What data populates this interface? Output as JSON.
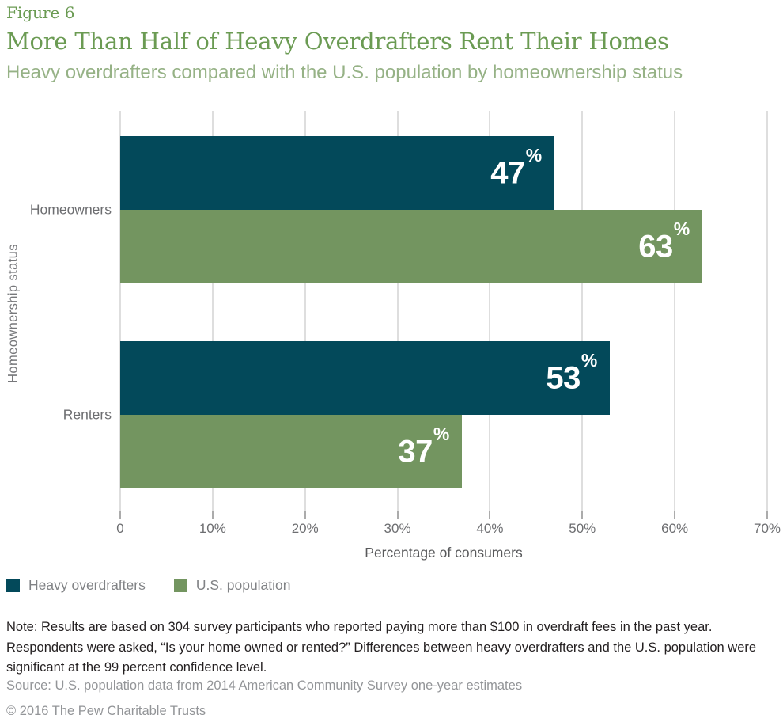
{
  "header": {
    "figure_label": "Figure 6",
    "title": "More Than Half of Heavy Overdrafters Rent Their Homes",
    "subtitle": "Heavy overdrafters compared with the U.S. population by homeownership status"
  },
  "chart_data": {
    "type": "bar",
    "orientation": "horizontal",
    "categories": [
      "Homeowners",
      "Renters"
    ],
    "series": [
      {
        "name": "Heavy overdrafters",
        "color": "#03495a",
        "values": [
          47,
          53
        ]
      },
      {
        "name": "U.S. population",
        "color": "#739560",
        "values": [
          63,
          37
        ]
      }
    ],
    "value_suffix": "%",
    "xlabel": "Percentage of consumers",
    "ylabel": "Homeownership status",
    "xlim": [
      0,
      70
    ],
    "x_ticks": [
      {
        "value": 0,
        "label": "0"
      },
      {
        "value": 10,
        "label": "10%"
      },
      {
        "value": 20,
        "label": "20%"
      },
      {
        "value": 30,
        "label": "30%"
      },
      {
        "value": 40,
        "label": "40%"
      },
      {
        "value": 50,
        "label": "50%"
      },
      {
        "value": 60,
        "label": "60%"
      },
      {
        "value": 70,
        "label": "70%"
      }
    ],
    "grid": "vertical",
    "legend_position": "bottom-left",
    "bar_label_color": "#ffffff",
    "gridline_color": "#dedede"
  },
  "footnotes": {
    "note": "Note: Results are based on 304 survey participants who reported paying more than $100 in overdraft fees in the past year. Respondents were asked, “Is your home owned or rented?” Differences between heavy overdrafters and the U.S. population were significant at the 99 percent confidence level.",
    "source": "Source: U.S. population data from 2014 American Community Survey one-year estimates",
    "copyright": "© 2016 The Pew Charitable Trusts"
  }
}
